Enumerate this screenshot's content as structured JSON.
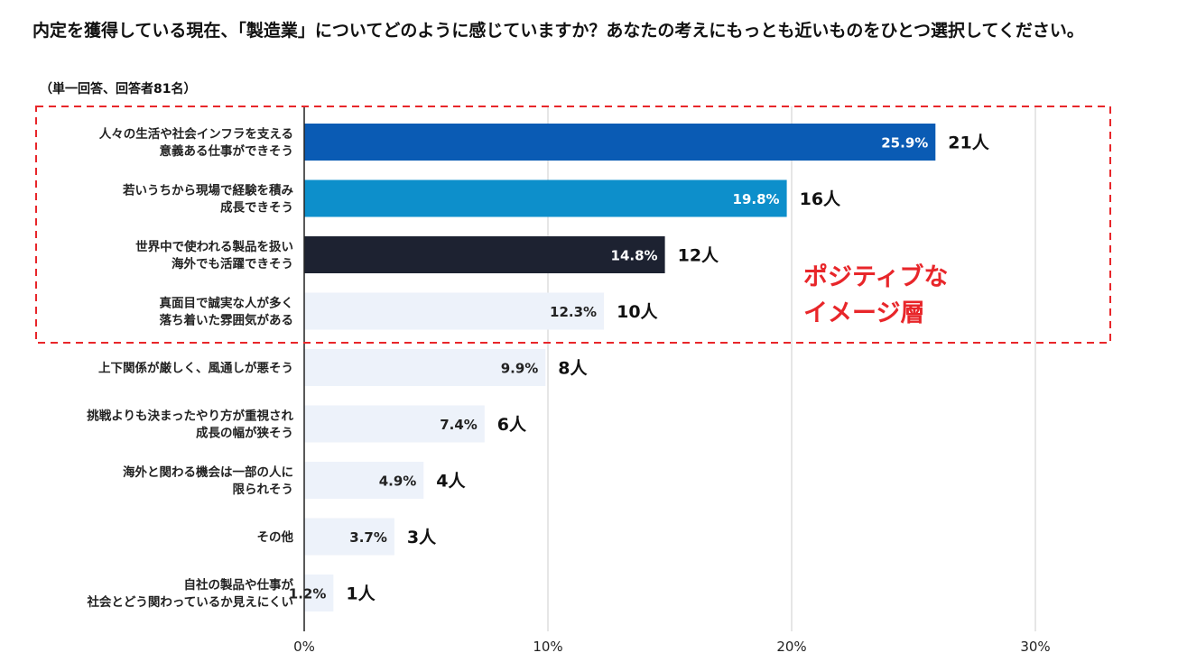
{
  "title": "内定を獲得している現在、「製造業」についてどのように感じていますか？あなたの考えにもっとも近いものをひとつ選択してください。",
  "subtitle": "（単一回答、回答者81名）",
  "annotation": "ポジティブな\nイメージ層",
  "colors": {
    "bar_1": "#0a5bb4",
    "bar_2": "#0d8fcb",
    "bar_3": "#1d2231",
    "bar_other": "#edf2fa",
    "highlight": "#e8262a",
    "grid": "#cccccc"
  },
  "chart_data": {
    "type": "bar",
    "orientation": "horizontal",
    "categories": [
      "人々の生活や社会インフラを支える\n意義ある仕事ができそう",
      "若いうちから現場で経験を積み\n成長できそう",
      "世界中で使われる製品を扱い\n海外でも活躍できそう",
      "真面目で誠実な人が多く\n落ち着いた雰囲気がある",
      "上下関係が厳しく、風通しが悪そう",
      "挑戦よりも決まったやり方が重視され\n成長の幅が狭そう",
      "海外と関わる機会は一部の人に\n限られそう",
      "その他",
      "自社の製品や仕事が\n社会とどう関わっているか見えにくい"
    ],
    "values": [
      25.9,
      19.8,
      14.8,
      12.3,
      9.9,
      7.4,
      4.9,
      3.7,
      1.2
    ],
    "value_labels": [
      "25.9%",
      "19.8%",
      "14.8%",
      "12.3%",
      "9.9%",
      "7.4%",
      "4.9%",
      "3.7%",
      "1.2%"
    ],
    "counts": [
      "21人",
      "16人",
      "12人",
      "10人",
      "8人",
      "6人",
      "4人",
      "3人",
      "1人"
    ],
    "xlim": [
      0,
      30
    ],
    "ticks": [
      0,
      10,
      20,
      30
    ],
    "tick_labels": [
      "0%",
      "10%",
      "20%",
      "30%"
    ],
    "grid": true,
    "highlight_group": [
      0,
      1,
      2,
      3
    ]
  }
}
